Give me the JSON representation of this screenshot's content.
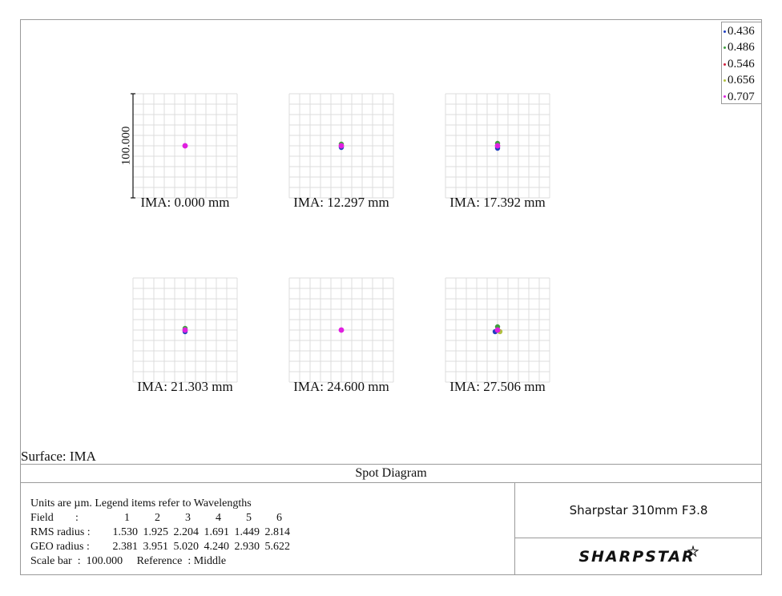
{
  "legend": [
    {
      "label": "0.436",
      "color": "#1f3fbf"
    },
    {
      "label": "0.486",
      "color": "#3f9f3f"
    },
    {
      "label": "0.546",
      "color": "#d0203f"
    },
    {
      "label": "0.656",
      "color": "#b0c040"
    },
    {
      "label": "0.707",
      "color": "#e020e0"
    }
  ],
  "fields": [
    {
      "label": "IMA: 0.000 mm",
      "rms": 1.53
    },
    {
      "label": "IMA: 12.297 mm",
      "rms": 1.925
    },
    {
      "label": "IMA: 17.392 mm",
      "rms": 2.204
    },
    {
      "label": "IMA: 21.303 mm",
      "rms": 1.691
    },
    {
      "label": "IMA: 24.600 mm",
      "rms": 1.449
    },
    {
      "label": "IMA: 27.506 mm",
      "rms": 2.814
    }
  ],
  "scale_bar_label": "100.000",
  "surface": "Surface: IMA",
  "title": "Spot Diagram",
  "info": {
    "line1": "Units are µm. Legend items refer to Wavelengths",
    "field_label": "Field",
    "colon": ":",
    "field_numbers": [
      "1",
      "2",
      "3",
      "4",
      "5",
      "6"
    ],
    "rms_label": "RMS radius :",
    "rms_values": [
      "1.530",
      "1.925",
      "2.204",
      "1.691",
      "1.449",
      "2.814"
    ],
    "geo_label": "GEO radius :",
    "geo_values": [
      "2.381",
      "3.951",
      "5.020",
      "4.240",
      "2.930",
      "5.622"
    ],
    "scale_line": "Scale bar  :  100.000     Reference  : Middle"
  },
  "model_name": "Sharpstar 310mm F3.8",
  "brand": "SHARPSTAR"
}
